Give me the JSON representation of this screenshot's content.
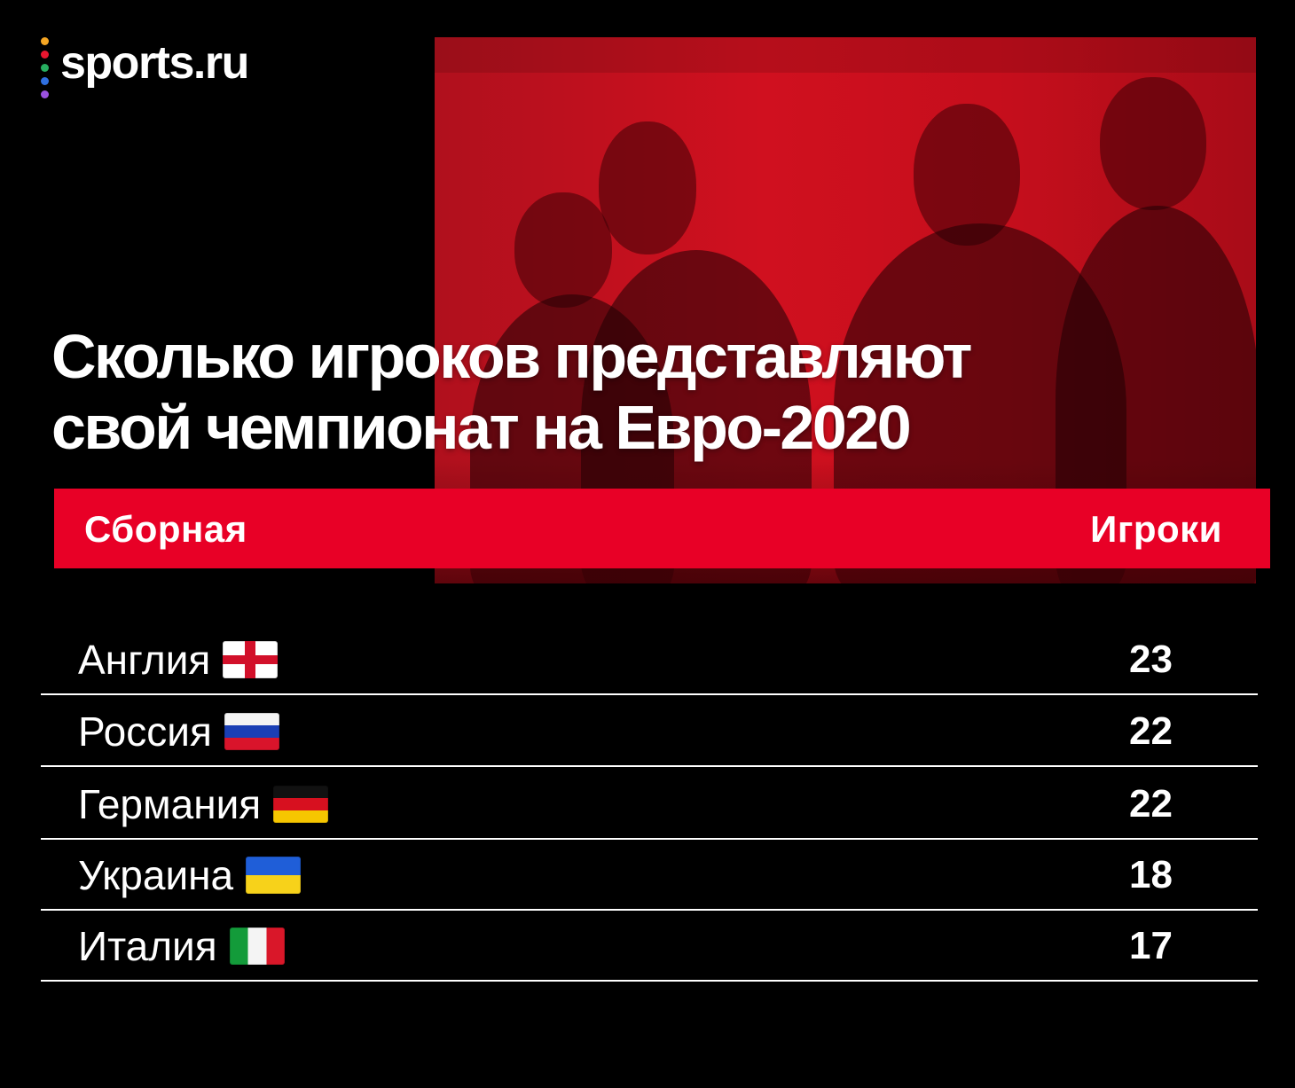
{
  "logo": {
    "text": "sports.ru",
    "dot_colors": [
      "#f5a623",
      "#e8162f",
      "#27ae60",
      "#2f6fe0",
      "#9b51e0"
    ]
  },
  "title": {
    "line1": "Сколько игроков представляют",
    "line2": "свой чемпионат на Евро-2020"
  },
  "colors": {
    "accent": "#e80026",
    "background": "#000000",
    "text": "#ffffff"
  },
  "chart_data": {
    "type": "table",
    "columns": [
      "Сборная",
      "Игроки"
    ],
    "rows": [
      {
        "team": "Англия",
        "flag": "england-flag-icon",
        "players": 23
      },
      {
        "team": "Россия",
        "flag": "russia-flag-icon",
        "players": 22
      },
      {
        "team": "Германия",
        "flag": "germany-flag-icon",
        "players": 22
      },
      {
        "team": "Украина",
        "flag": "ukraine-flag-icon",
        "players": 18
      },
      {
        "team": "Италия",
        "flag": "italy-flag-icon",
        "players": 17
      }
    ]
  }
}
